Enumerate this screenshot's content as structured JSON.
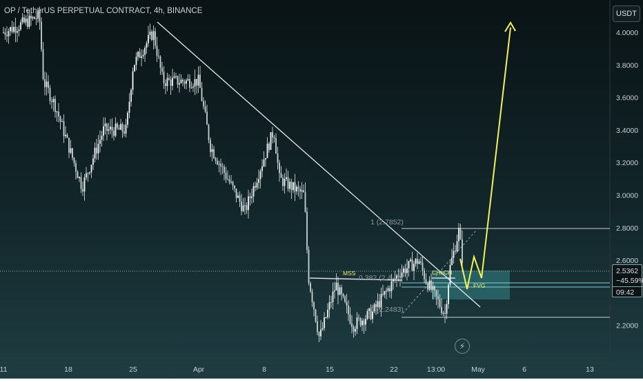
{
  "header": {
    "title": "OP / TetherUS PERPETUAL CONTRACT, 4h, BINANCE"
  },
  "price_axis": {
    "unit_label": "USDT"
  },
  "price_tag": {
    "price": "2.5362",
    "change": "−45.59%",
    "countdown": "09:42"
  },
  "toolbar": {
    "flash_icon": "lightning-icon"
  },
  "colors": {
    "background_top": "#0b1416",
    "background_bottom": "#1e3a3f",
    "candle": "#eef2f2",
    "trendline": "#e6ecec",
    "projection_arrow": "#f4f45a",
    "fvg_zone": "#2c6f72",
    "current_price_line": "#9ab0b5",
    "label_yellow": "#f0ec6a"
  },
  "chart_data": {
    "type": "candlestick",
    "title": "OP / TetherUS PERPETUAL CONTRACT, 4h, BINANCE",
    "ylim": [
      2.1,
      4.12
    ],
    "y_ticks": [
      "4.0000",
      "3.8000",
      "3.6000",
      "3.4000",
      "3.2000",
      "3.0000",
      "2.8000",
      "2.6000",
      "2.2000"
    ],
    "x_ticks": [
      "11",
      "18",
      "25",
      "Apr",
      "8",
      "15",
      "22",
      "13:00",
      "May",
      "6",
      "13"
    ],
    "price_path": [
      {
        "x": "Mar 11",
        "y": 4.0
      },
      {
        "x": "Mar 14",
        "y": 4.1
      },
      {
        "x": "Mar 15",
        "y": 3.7
      },
      {
        "x": "Mar 17",
        "y": 3.55
      },
      {
        "x": "Mar 19",
        "y": 3.05
      },
      {
        "x": "Mar 21",
        "y": 3.4
      },
      {
        "x": "Mar 24",
        "y": 3.4
      },
      {
        "x": "Mar 25",
        "y": 3.8
      },
      {
        "x": "Mar 27",
        "y": 4.0
      },
      {
        "x": "Mar 28",
        "y": 3.7
      },
      {
        "x": "Mar 31",
        "y": 3.7
      },
      {
        "x": "Apr 2",
        "y": 3.3
      },
      {
        "x": "Apr 5",
        "y": 2.9
      },
      {
        "x": "Apr 8",
        "y": 3.4
      },
      {
        "x": "Apr 9",
        "y": 3.1
      },
      {
        "x": "Apr 12",
        "y": 3.0
      },
      {
        "x": "Apr 13",
        "y": 2.5
      },
      {
        "x": "Apr 14",
        "y": 2.12
      },
      {
        "x": "Apr 15",
        "y": 2.45
      },
      {
        "x": "Apr 17",
        "y": 2.2
      },
      {
        "x": "Apr 19",
        "y": 2.28
      },
      {
        "x": "Apr 22",
        "y": 2.52
      },
      {
        "x": "Apr 23",
        "y": 2.6
      },
      {
        "x": "Apr 24",
        "y": 2.48
      },
      {
        "x": "Apr 26",
        "y": 2.27
      },
      {
        "x": "Apr 27",
        "y": 2.55
      },
      {
        "x": "Apr 28",
        "y": 2.78
      },
      {
        "x": "Apr 29",
        "y": 2.55
      }
    ],
    "annotations": {
      "fib_top": "1 (2.7852)",
      "fib_bottom": "1 (2.2483)",
      "fib_mid": "0.382 (2.4...",
      "mss": "MSS",
      "choch": "CHoCH",
      "fvg": "FVG"
    },
    "levels": {
      "fib_top": 2.7852,
      "fib_bottom": 2.2483,
      "current_price": 2.5362
    }
  }
}
